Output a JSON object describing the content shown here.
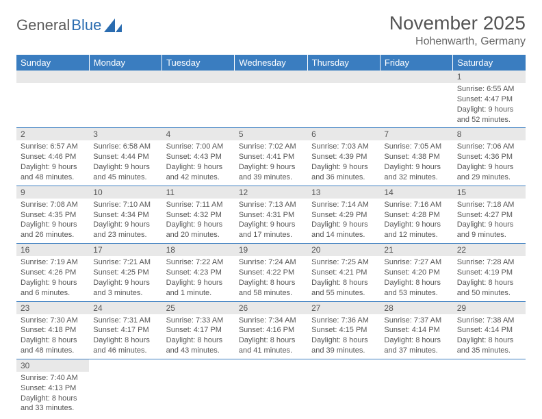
{
  "logo": {
    "text1": "General",
    "text2": "Blue"
  },
  "title": "November 2025",
  "location": "Hohenwarth, Germany",
  "colors": {
    "header_bg": "#3a7dc0",
    "header_text": "#ffffff",
    "daynum_bg": "#e8e8e8",
    "text": "#555555",
    "rule": "#3a7dc0",
    "background": "#ffffff"
  },
  "typography": {
    "title_fontsize": 28,
    "location_fontsize": 16,
    "dayheader_fontsize": 13,
    "daynum_fontsize": 12,
    "cell_fontsize": 11
  },
  "day_headers": [
    "Sunday",
    "Monday",
    "Tuesday",
    "Wednesday",
    "Thursday",
    "Friday",
    "Saturday"
  ],
  "weeks": [
    [
      {
        "n": "",
        "sunrise": "",
        "sunset": "",
        "daylight": ""
      },
      {
        "n": "",
        "sunrise": "",
        "sunset": "",
        "daylight": ""
      },
      {
        "n": "",
        "sunrise": "",
        "sunset": "",
        "daylight": ""
      },
      {
        "n": "",
        "sunrise": "",
        "sunset": "",
        "daylight": ""
      },
      {
        "n": "",
        "sunrise": "",
        "sunset": "",
        "daylight": ""
      },
      {
        "n": "",
        "sunrise": "",
        "sunset": "",
        "daylight": ""
      },
      {
        "n": "1",
        "sunrise": "Sunrise: 6:55 AM",
        "sunset": "Sunset: 4:47 PM",
        "daylight": "Daylight: 9 hours and 52 minutes."
      }
    ],
    [
      {
        "n": "2",
        "sunrise": "Sunrise: 6:57 AM",
        "sunset": "Sunset: 4:46 PM",
        "daylight": "Daylight: 9 hours and 48 minutes."
      },
      {
        "n": "3",
        "sunrise": "Sunrise: 6:58 AM",
        "sunset": "Sunset: 4:44 PM",
        "daylight": "Daylight: 9 hours and 45 minutes."
      },
      {
        "n": "4",
        "sunrise": "Sunrise: 7:00 AM",
        "sunset": "Sunset: 4:43 PM",
        "daylight": "Daylight: 9 hours and 42 minutes."
      },
      {
        "n": "5",
        "sunrise": "Sunrise: 7:02 AM",
        "sunset": "Sunset: 4:41 PM",
        "daylight": "Daylight: 9 hours and 39 minutes."
      },
      {
        "n": "6",
        "sunrise": "Sunrise: 7:03 AM",
        "sunset": "Sunset: 4:39 PM",
        "daylight": "Daylight: 9 hours and 36 minutes."
      },
      {
        "n": "7",
        "sunrise": "Sunrise: 7:05 AM",
        "sunset": "Sunset: 4:38 PM",
        "daylight": "Daylight: 9 hours and 32 minutes."
      },
      {
        "n": "8",
        "sunrise": "Sunrise: 7:06 AM",
        "sunset": "Sunset: 4:36 PM",
        "daylight": "Daylight: 9 hours and 29 minutes."
      }
    ],
    [
      {
        "n": "9",
        "sunrise": "Sunrise: 7:08 AM",
        "sunset": "Sunset: 4:35 PM",
        "daylight": "Daylight: 9 hours and 26 minutes."
      },
      {
        "n": "10",
        "sunrise": "Sunrise: 7:10 AM",
        "sunset": "Sunset: 4:34 PM",
        "daylight": "Daylight: 9 hours and 23 minutes."
      },
      {
        "n": "11",
        "sunrise": "Sunrise: 7:11 AM",
        "sunset": "Sunset: 4:32 PM",
        "daylight": "Daylight: 9 hours and 20 minutes."
      },
      {
        "n": "12",
        "sunrise": "Sunrise: 7:13 AM",
        "sunset": "Sunset: 4:31 PM",
        "daylight": "Daylight: 9 hours and 17 minutes."
      },
      {
        "n": "13",
        "sunrise": "Sunrise: 7:14 AM",
        "sunset": "Sunset: 4:29 PM",
        "daylight": "Daylight: 9 hours and 14 minutes."
      },
      {
        "n": "14",
        "sunrise": "Sunrise: 7:16 AM",
        "sunset": "Sunset: 4:28 PM",
        "daylight": "Daylight: 9 hours and 12 minutes."
      },
      {
        "n": "15",
        "sunrise": "Sunrise: 7:18 AM",
        "sunset": "Sunset: 4:27 PM",
        "daylight": "Daylight: 9 hours and 9 minutes."
      }
    ],
    [
      {
        "n": "16",
        "sunrise": "Sunrise: 7:19 AM",
        "sunset": "Sunset: 4:26 PM",
        "daylight": "Daylight: 9 hours and 6 minutes."
      },
      {
        "n": "17",
        "sunrise": "Sunrise: 7:21 AM",
        "sunset": "Sunset: 4:25 PM",
        "daylight": "Daylight: 9 hours and 3 minutes."
      },
      {
        "n": "18",
        "sunrise": "Sunrise: 7:22 AM",
        "sunset": "Sunset: 4:23 PM",
        "daylight": "Daylight: 9 hours and 1 minute."
      },
      {
        "n": "19",
        "sunrise": "Sunrise: 7:24 AM",
        "sunset": "Sunset: 4:22 PM",
        "daylight": "Daylight: 8 hours and 58 minutes."
      },
      {
        "n": "20",
        "sunrise": "Sunrise: 7:25 AM",
        "sunset": "Sunset: 4:21 PM",
        "daylight": "Daylight: 8 hours and 55 minutes."
      },
      {
        "n": "21",
        "sunrise": "Sunrise: 7:27 AM",
        "sunset": "Sunset: 4:20 PM",
        "daylight": "Daylight: 8 hours and 53 minutes."
      },
      {
        "n": "22",
        "sunrise": "Sunrise: 7:28 AM",
        "sunset": "Sunset: 4:19 PM",
        "daylight": "Daylight: 8 hours and 50 minutes."
      }
    ],
    [
      {
        "n": "23",
        "sunrise": "Sunrise: 7:30 AM",
        "sunset": "Sunset: 4:18 PM",
        "daylight": "Daylight: 8 hours and 48 minutes."
      },
      {
        "n": "24",
        "sunrise": "Sunrise: 7:31 AM",
        "sunset": "Sunset: 4:17 PM",
        "daylight": "Daylight: 8 hours and 46 minutes."
      },
      {
        "n": "25",
        "sunrise": "Sunrise: 7:33 AM",
        "sunset": "Sunset: 4:17 PM",
        "daylight": "Daylight: 8 hours and 43 minutes."
      },
      {
        "n": "26",
        "sunrise": "Sunrise: 7:34 AM",
        "sunset": "Sunset: 4:16 PM",
        "daylight": "Daylight: 8 hours and 41 minutes."
      },
      {
        "n": "27",
        "sunrise": "Sunrise: 7:36 AM",
        "sunset": "Sunset: 4:15 PM",
        "daylight": "Daylight: 8 hours and 39 minutes."
      },
      {
        "n": "28",
        "sunrise": "Sunrise: 7:37 AM",
        "sunset": "Sunset: 4:14 PM",
        "daylight": "Daylight: 8 hours and 37 minutes."
      },
      {
        "n": "29",
        "sunrise": "Sunrise: 7:38 AM",
        "sunset": "Sunset: 4:14 PM",
        "daylight": "Daylight: 8 hours and 35 minutes."
      }
    ],
    [
      {
        "n": "30",
        "sunrise": "Sunrise: 7:40 AM",
        "sunset": "Sunset: 4:13 PM",
        "daylight": "Daylight: 8 hours and 33 minutes."
      },
      {
        "n": "",
        "sunrise": "",
        "sunset": "",
        "daylight": ""
      },
      {
        "n": "",
        "sunrise": "",
        "sunset": "",
        "daylight": ""
      },
      {
        "n": "",
        "sunrise": "",
        "sunset": "",
        "daylight": ""
      },
      {
        "n": "",
        "sunrise": "",
        "sunset": "",
        "daylight": ""
      },
      {
        "n": "",
        "sunrise": "",
        "sunset": "",
        "daylight": ""
      },
      {
        "n": "",
        "sunrise": "",
        "sunset": "",
        "daylight": ""
      }
    ]
  ]
}
